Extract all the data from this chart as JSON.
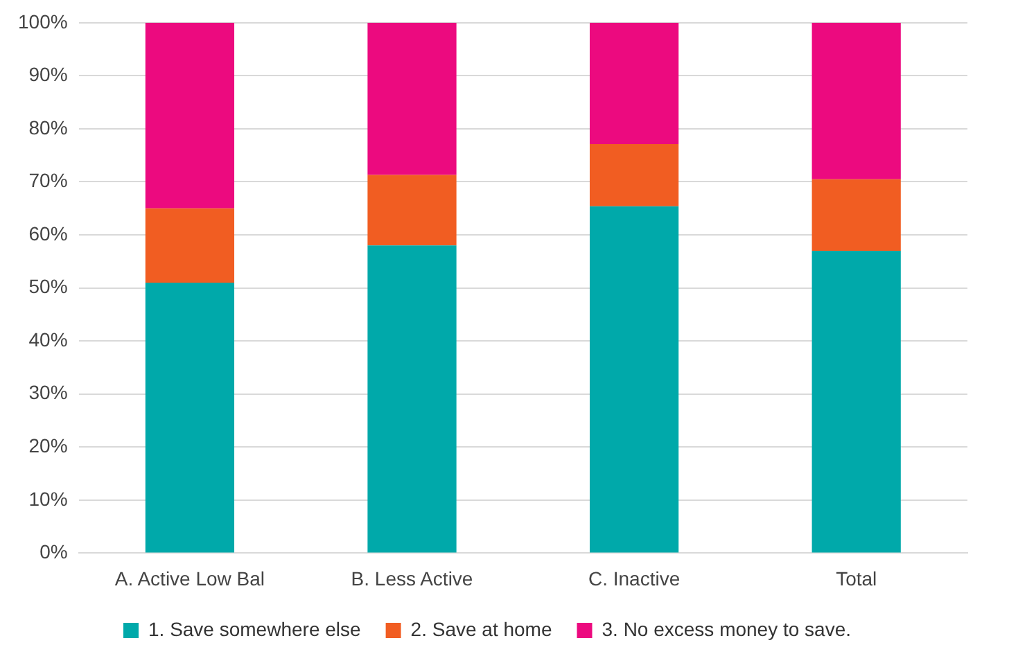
{
  "chart_data": {
    "type": "bar",
    "stacked": true,
    "categories": [
      "A. Active Low Bal",
      "B. Less Active",
      "C. Inactive",
      "Total"
    ],
    "series": [
      {
        "name": "1. Save somewhere else",
        "color": "#00a9aa",
        "values": [
          51,
          58,
          65.4,
          57
        ]
      },
      {
        "name": "2. Save at home",
        "color": "#f15d22",
        "values": [
          14,
          13.3,
          11.7,
          13.5
        ]
      },
      {
        "name": "3. No excess money to save.",
        "color": "#ec0a7f",
        "values": [
          35,
          28.7,
          22.9,
          29.5
        ]
      }
    ],
    "ylim": [
      0,
      100
    ],
    "yticks": [
      {
        "value": 0,
        "label": "0%"
      },
      {
        "value": 10,
        "label": "10%"
      },
      {
        "value": 20,
        "label": "20%"
      },
      {
        "value": 30,
        "label": "30%"
      },
      {
        "value": 40,
        "label": "40%"
      },
      {
        "value": 50,
        "label": "50%"
      },
      {
        "value": 60,
        "label": "60%"
      },
      {
        "value": 70,
        "label": "70%"
      },
      {
        "value": 80,
        "label": "80%"
      },
      {
        "value": 90,
        "label": "90%"
      },
      {
        "value": 100,
        "label": "100%"
      }
    ],
    "grid": "y",
    "legend": "bottom"
  }
}
